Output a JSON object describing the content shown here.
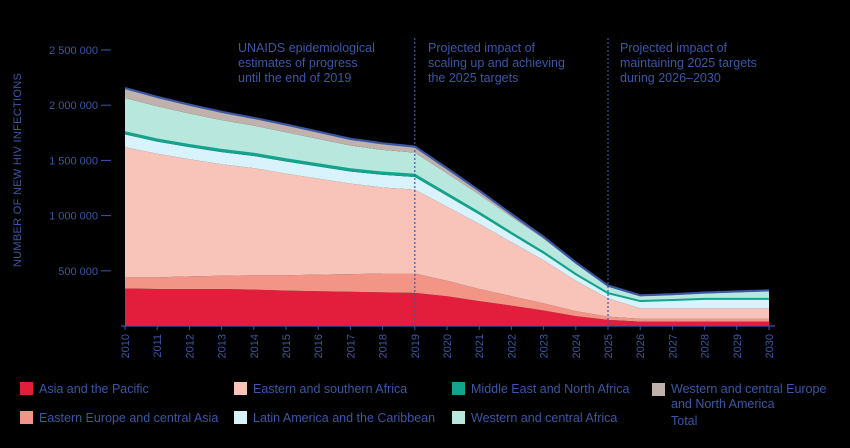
{
  "chart_data": {
    "type": "area",
    "stacked": true,
    "ylabel": "NUMBER OF NEW HIV INFECTIONS",
    "ylim": [
      0,
      2500000
    ],
    "yticks": [
      500000,
      1000000,
      1500000,
      2000000,
      2500000
    ],
    "ytick_labels": [
      "500 000",
      "1 000 000",
      "1 500 000",
      "2 000 000",
      "2 500 000"
    ],
    "x": [
      2010,
      2011,
      2012,
      2013,
      2014,
      2015,
      2016,
      2017,
      2018,
      2019,
      2020,
      2021,
      2022,
      2023,
      2024,
      2025,
      2026,
      2027,
      2028,
      2029,
      2030
    ],
    "xtick_labels": [
      "2010",
      "2011",
      "2012",
      "2013",
      "2014",
      "2015",
      "2016",
      "2017",
      "2018",
      "2019",
      "2020",
      "2021",
      "2022",
      "2023",
      "2024",
      "2025",
      "2026",
      "2027",
      "2028",
      "2029",
      "2030"
    ],
    "series": [
      {
        "name": "Asia and the Pacific",
        "color": "#e31d3c",
        "values": [
          340000,
          335000,
          335000,
          335000,
          330000,
          320000,
          315000,
          310000,
          305000,
          300000,
          270000,
          225000,
          185000,
          140000,
          90000,
          55000,
          40000,
          40000,
          40000,
          40000,
          40000
        ]
      },
      {
        "name": "Eastern Europe and central Asia",
        "color": "#f39586",
        "values": [
          100000,
          105000,
          115000,
          120000,
          130000,
          140000,
          150000,
          160000,
          170000,
          175000,
          140000,
          110000,
          85000,
          65000,
          45000,
          30000,
          25000,
          25000,
          25000,
          25000,
          25000
        ]
      },
      {
        "name": "Eastern and southern Africa",
        "color": "#f8c3b8",
        "values": [
          1180000,
          1120000,
          1060000,
          1010000,
          970000,
          920000,
          870000,
          820000,
          780000,
          760000,
          670000,
          590000,
          490000,
          390000,
          275000,
          165000,
          95000,
          95000,
          95000,
          95000,
          95000
        ]
      },
      {
        "name": "Latin America and the Caribbean",
        "color": "#d8f3fb",
        "values": [
          115000,
          110000,
          110000,
          110000,
          110000,
          110000,
          110000,
          110000,
          115000,
          115000,
          100000,
          85000,
          70000,
          60000,
          50000,
          40000,
          60000,
          70000,
          80000,
          80000,
          80000
        ]
      },
      {
        "name": "Middle East and North Africa",
        "color": "#14a38c",
        "values": [
          20000,
          20000,
          20000,
          20000,
          20000,
          20000,
          20000,
          20000,
          20000,
          20000,
          18000,
          16000,
          14000,
          12000,
          10000,
          8000,
          6000,
          6000,
          6000,
          6000,
          6000
        ]
      },
      {
        "name": "Western and central Africa",
        "color": "#b8e8dd",
        "values": [
          310000,
          300000,
          285000,
          270000,
          255000,
          245000,
          230000,
          215000,
          205000,
          200000,
          185000,
          165000,
          145000,
          125000,
          95000,
          60000,
          45000,
          45000,
          50000,
          60000,
          70000
        ]
      },
      {
        "name": "Western and central Europe and North America",
        "color": "#c0b1ad",
        "values": [
          90000,
          85000,
          80000,
          75000,
          70000,
          70000,
          65000,
          60000,
          60000,
          55000,
          45000,
          35000,
          25000,
          15000,
          10000,
          8000,
          7000,
          7000,
          7000,
          7000,
          7000
        ]
      }
    ],
    "total": {
      "name": "Total",
      "color": "#3b57a5",
      "values": [
        2155000,
        2075000,
        2005000,
        1940000,
        1885000,
        1825000,
        1760000,
        1695000,
        1655000,
        1625000,
        1428000,
        1226000,
        1014000,
        807000,
        575000,
        366000,
        278000,
        288000,
        303000,
        313000,
        323000
      ]
    },
    "dividers": [
      2019,
      2025
    ],
    "annotations": [
      {
        "lines": [
          "UNAIDS epidemiological",
          "estimates of progress",
          "until the end of 2019"
        ]
      },
      {
        "lines": [
          "Projected impact of",
          "scaling up and achieving",
          "the 2025 targets"
        ]
      },
      {
        "lines": [
          "Projected impact of",
          "maintaining 2025 targets",
          "during 2026–2030"
        ]
      }
    ],
    "legend_total_label": "Total"
  }
}
